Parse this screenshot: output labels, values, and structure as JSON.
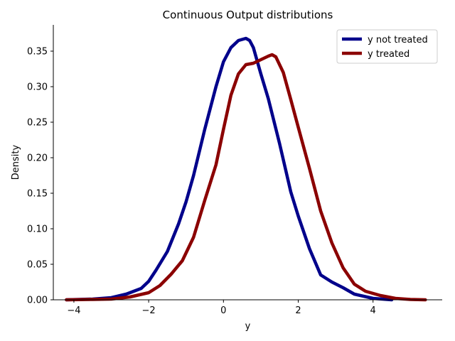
{
  "chart_data": {
    "type": "line",
    "title": "Continuous Output distributions",
    "xlabel": "y",
    "ylabel": "Density",
    "xlim": [
      -4.55,
      5.85
    ],
    "ylim": [
      0,
      0.387
    ],
    "xticks": [
      -4,
      -2,
      0,
      2,
      4
    ],
    "yticks": [
      0.0,
      0.05,
      0.1,
      0.15,
      0.2,
      0.25,
      0.3,
      0.35
    ],
    "ytick_labels": [
      "0.00",
      "0.05",
      "0.10",
      "0.15",
      "0.20",
      "0.25",
      "0.30",
      "0.35"
    ],
    "grid": false,
    "legend_position": "top-right",
    "series": [
      {
        "name": "y not treated",
        "color": "#00008b",
        "x": [
          -4.2,
          -3.5,
          -3.0,
          -2.6,
          -2.2,
          -2.0,
          -1.8,
          -1.5,
          -1.2,
          -1.0,
          -0.8,
          -0.5,
          -0.2,
          0.0,
          0.2,
          0.4,
          0.6,
          0.7,
          0.8,
          1.0,
          1.2,
          1.5,
          1.8,
          2.0,
          2.3,
          2.6,
          2.9,
          3.2,
          3.5,
          4.0,
          4.5
        ],
        "y": [
          0.0,
          0.001,
          0.003,
          0.008,
          0.016,
          0.026,
          0.042,
          0.068,
          0.107,
          0.138,
          0.175,
          0.24,
          0.3,
          0.335,
          0.355,
          0.365,
          0.368,
          0.365,
          0.355,
          0.318,
          0.283,
          0.22,
          0.152,
          0.118,
          0.072,
          0.035,
          0.025,
          0.017,
          0.008,
          0.002,
          0.0
        ]
      },
      {
        "name": "y treated",
        "color": "#8b0000",
        "x": [
          -4.2,
          -3.5,
          -3.0,
          -2.5,
          -2.0,
          -1.7,
          -1.4,
          -1.1,
          -0.8,
          -0.5,
          -0.2,
          0.0,
          0.2,
          0.4,
          0.6,
          0.8,
          1.0,
          1.2,
          1.3,
          1.4,
          1.6,
          1.8,
          2.0,
          2.3,
          2.6,
          2.9,
          3.2,
          3.5,
          3.8,
          4.2,
          4.6,
          5.0,
          5.4
        ],
        "y": [
          0.0,
          0.0005,
          0.001,
          0.004,
          0.01,
          0.02,
          0.036,
          0.055,
          0.088,
          0.14,
          0.19,
          0.24,
          0.288,
          0.318,
          0.331,
          0.333,
          0.338,
          0.343,
          0.345,
          0.342,
          0.32,
          0.282,
          0.243,
          0.185,
          0.125,
          0.08,
          0.045,
          0.022,
          0.012,
          0.006,
          0.002,
          0.0005,
          0.0
        ]
      }
    ]
  }
}
